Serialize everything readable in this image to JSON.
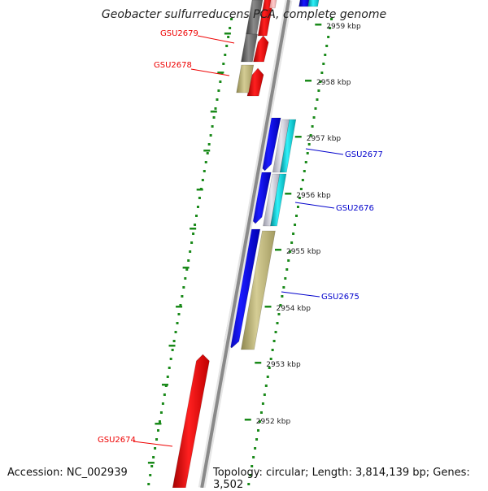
{
  "title": "Geobacter sulfurreducens PCA, complete genome",
  "footer": {
    "accession": "Accession: NC_002939",
    "summary": "Topology: circular; Length: 3,814,139 bp; Genes: 3,502"
  },
  "scale_labels": [
    "2959 kbp",
    "2958 kbp",
    "2957 kbp",
    "2956 kbp",
    "2955 kbp",
    "2954 kbp",
    "2953 kbp",
    "2952 kbp"
  ],
  "gene_labels": [
    {
      "text": "GSU2679",
      "color": "#ee0000"
    },
    {
      "text": "GSU2678",
      "color": "#ee0000"
    },
    {
      "text": "GSU2677",
      "color": "#0000cc"
    },
    {
      "text": "GSU2676",
      "color": "#0000cc"
    },
    {
      "text": "GSU2675",
      "color": "#0000cc"
    },
    {
      "text": "GSU2674",
      "color": "#ee0000"
    }
  ],
  "colors": {
    "backbone": "#8a8a8a",
    "tick": "#1a8a1a",
    "forward_gene": "#ee0000",
    "reverse_gene": "#0000ee",
    "khaki": "#bdb57a",
    "cyan": "#00d6e0",
    "gray_gene": "#666666"
  }
}
